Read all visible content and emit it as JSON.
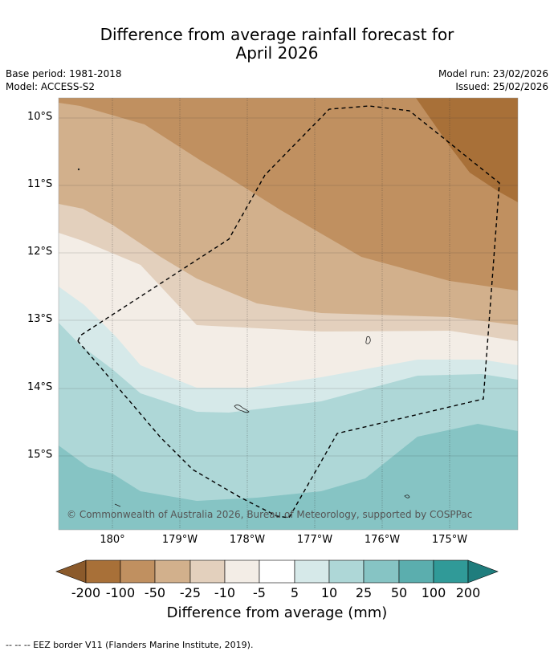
{
  "title_line1": "Difference from average rainfall forecast for",
  "title_line2": "April 2026",
  "base_period": "Base period: 1981-2018",
  "model": "Model: ACCESS-S2",
  "model_run": "Model run: 23/02/2026",
  "issued": "Issued: 25/02/2026",
  "lat_labels": [
    "10°S",
    "11°S",
    "12°S",
    "13°S",
    "14°S",
    "15°S"
  ],
  "lon_labels": [
    "180°",
    "179°W",
    "178°W",
    "177°W",
    "176°W",
    "175°W"
  ],
  "copyright": "© Commonwealth of Australia 2026, Bureau of Meteorology, supported by COSPPac",
  "colorbar": {
    "ticks": [
      "-200",
      "-100",
      "-50",
      "-25",
      "-10",
      "-5",
      "5",
      "10",
      "25",
      "50",
      "100",
      "200"
    ],
    "colors": [
      "#8b5a2b",
      "#a87038",
      "#c09060",
      "#d2b08c",
      "#e3d0bd",
      "#f3ede6",
      "#ffffff",
      "#d6e9e9",
      "#aed7d7",
      "#86c4c4",
      "#5baeae",
      "#309a98",
      "#1f7d7d"
    ],
    "title": "Difference from average (mm)"
  },
  "legend_note": "--  --  -- EEZ border V11 (Flanders Marine Institute, 2019)."
}
